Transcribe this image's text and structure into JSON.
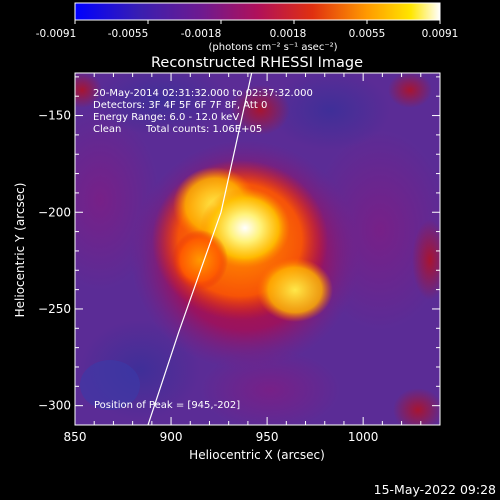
{
  "chart_data": {
    "type": "heatmap",
    "title": "Reconstructed RHESSI Image",
    "xlabel": "Heliocentric X (arcsec)",
    "ylabel": "Heliocentric Y (arcsec)",
    "xlim": [
      850,
      1040
    ],
    "ylim": [
      -310,
      -128
    ],
    "x_ticks": [
      850,
      900,
      950,
      1000
    ],
    "y_ticks": [
      -150,
      -200,
      -250,
      -300
    ],
    "colorbar": {
      "range": [
        -0.0091,
        0.0091
      ],
      "ticks": [
        "-0.0091",
        "-0.0055",
        "-0.0018",
        "0.0018",
        "0.0055",
        "0.0091"
      ],
      "units_label": "(photons cm⁻² s⁻¹ asec⁻²)",
      "colormap": [
        "#0000ff",
        "#5a2c9a",
        "#8b008b",
        "#d61a10",
        "#ff8a00",
        "#ffe000",
        "#ffffff"
      ]
    },
    "annotations": {
      "time_range": "20-May-2014 02:31:32.000 to 02:37:32.000",
      "detectors": "Detectors: 3F 4F 5F 6F 7F 8F, Att 0",
      "energy": "Energy Range: 6.0 - 12.0 keV",
      "clean_label": "Clean",
      "counts": "Total counts: 1.06E+05",
      "peak": "Position of Peak = [945,-202]"
    },
    "peak": {
      "x": 945,
      "y": -202
    },
    "limb_line": [
      {
        "x": 942,
        "y": -128
      },
      {
        "x": 926,
        "y": -200
      },
      {
        "x": 904,
        "y": -262
      },
      {
        "x": 888,
        "y": -310
      }
    ],
    "footer_date": "15-May-2022 09:28"
  }
}
